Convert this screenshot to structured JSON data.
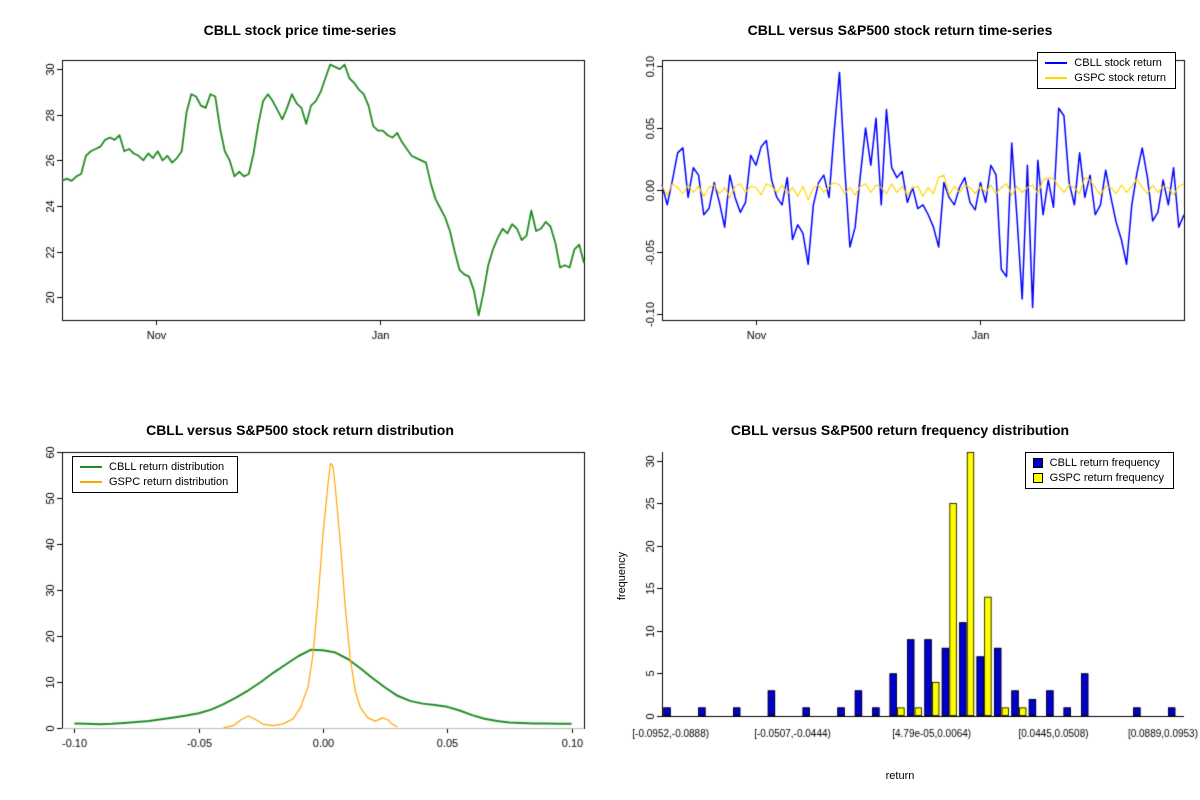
{
  "chart_data": [
    {
      "id": "price-timeseries",
      "type": "line",
      "title": "CBLL stock price time-series",
      "box": true,
      "ylim": [
        19.0,
        30.4
      ],
      "yticks": [
        {
          "v": 20,
          "label": "20"
        },
        {
          "v": 22,
          "label": "22"
        },
        {
          "v": 24,
          "label": "24"
        },
        {
          "v": 26,
          "label": "26"
        },
        {
          "v": 28,
          "label": "28"
        },
        {
          "v": 30,
          "label": "30"
        }
      ],
      "xticks": [
        {
          "pos": 0.18,
          "label": "Nov"
        },
        {
          "pos": 0.61,
          "label": "Jan"
        }
      ],
      "series": [
        {
          "name": "CBLL stock price",
          "color": "#228B22",
          "width": 1.8,
          "values": [
            25.1,
            25.2,
            25.1,
            25.3,
            25.4,
            26.2,
            26.4,
            26.5,
            26.6,
            26.9,
            27.0,
            26.9,
            27.1,
            26.4,
            26.5,
            26.3,
            26.2,
            26.0,
            26.3,
            26.1,
            26.4,
            26.0,
            26.2,
            25.9,
            26.1,
            26.4,
            28.1,
            28.9,
            28.8,
            28.4,
            28.3,
            28.9,
            28.8,
            27.4,
            26.4,
            26.0,
            25.3,
            25.5,
            25.3,
            25.4,
            26.3,
            27.6,
            28.6,
            28.9,
            28.6,
            28.2,
            27.8,
            28.3,
            28.9,
            28.5,
            28.3,
            27.6,
            28.4,
            28.6,
            29.0,
            29.6,
            30.2,
            30.1,
            30.0,
            30.2,
            29.6,
            29.4,
            29.1,
            28.9,
            28.4,
            27.5,
            27.3,
            27.3,
            27.1,
            27.0,
            27.2,
            26.8,
            26.5,
            26.2,
            26.1,
            26.0,
            25.9,
            25.0,
            24.3,
            23.9,
            23.5,
            22.9,
            22.0,
            21.2,
            21.0,
            20.9,
            20.3,
            19.2,
            20.2,
            21.4,
            22.1,
            22.6,
            23.0,
            22.8,
            23.2,
            23.0,
            22.5,
            22.7,
            23.8,
            22.9,
            23.0,
            23.3,
            23.1,
            22.4,
            21.3,
            21.4,
            21.3,
            22.1,
            22.3,
            21.5
          ]
        }
      ]
    },
    {
      "id": "return-timeseries",
      "type": "line",
      "title": "CBLL versus S&P500 stock return time-series",
      "box": true,
      "legend_position": "topright",
      "ylim": [
        -0.105,
        0.105
      ],
      "yticks": [
        {
          "v": -0.1,
          "label": "-0.10"
        },
        {
          "v": -0.05,
          "label": "-0.05"
        },
        {
          "v": 0,
          "label": "0.00"
        },
        {
          "v": 0.05,
          "label": "0.05"
        },
        {
          "v": 0.1,
          "label": "0.10"
        }
      ],
      "xticks": [
        {
          "pos": 0.18,
          "label": "Nov"
        },
        {
          "pos": 0.61,
          "label": "Jan"
        }
      ],
      "series": [
        {
          "name": "CBLL stock return",
          "color": "#0000FF",
          "width": 1.5,
          "values": [
            0.004,
            -0.012,
            0.008,
            0.03,
            0.034,
            -0.006,
            0.018,
            0.012,
            -0.02,
            -0.015,
            0.006,
            -0.01,
            -0.03,
            0.012,
            -0.006,
            -0.018,
            -0.01,
            0.028,
            0.02,
            0.035,
            0.04,
            0.008,
            -0.006,
            -0.012,
            0.01,
            -0.04,
            -0.028,
            -0.035,
            -0.06,
            -0.012,
            0.006,
            0.012,
            -0.006,
            0.048,
            0.095,
            0.018,
            -0.046,
            -0.03,
            0.012,
            0.05,
            0.02,
            0.058,
            -0.012,
            0.065,
            0.018,
            0.01,
            0.015,
            -0.01,
            0.002,
            -0.015,
            -0.012,
            -0.02,
            -0.03,
            -0.046,
            0.006,
            -0.006,
            -0.012,
            0.002,
            0.01,
            -0.01,
            -0.016,
            0.006,
            -0.01,
            0.02,
            0.012,
            -0.064,
            -0.07,
            0.038,
            -0.022,
            -0.088,
            0.02,
            -0.095,
            0.024,
            -0.02,
            0.008,
            -0.014,
            0.066,
            0.06,
            0.006,
            -0.012,
            0.03,
            -0.006,
            0.012,
            -0.02,
            -0.012,
            0.016,
            -0.006,
            -0.026,
            -0.04,
            -0.06,
            -0.012,
            0.014,
            0.034,
            0.01,
            -0.025,
            -0.018,
            0.008,
            -0.012,
            0.018,
            -0.03,
            -0.02
          ]
        },
        {
          "name": "GSPC stock return",
          "color": "#FFD700",
          "width": 1.2,
          "values": [
            0.003,
            -0.004,
            0.005,
            0.002,
            -0.003,
            0.004,
            -0.002,
            0.003,
            -0.005,
            0.002,
            0.004,
            -0.003,
            0.002,
            -0.006,
            0.003,
            0.005,
            -0.002,
            0.003,
            0.002,
            -0.004,
            0.005,
            0.003,
            -0.002,
            0.004,
            -0.003,
            0.002,
            -0.005,
            0.003,
            -0.008,
            0.002,
            0.004,
            -0.002,
            0.003,
            0.006,
            0.004,
            -0.003,
            0.002,
            -0.004,
            0.003,
            0.005,
            -0.002,
            0.004,
            0.002,
            -0.003,
            0.005,
            -0.002,
            0.003,
            -0.004,
            0.002,
            0.003,
            -0.005,
            0.002,
            -0.003,
            0.01,
            0.012,
            -0.004,
            0.003,
            -0.002,
            0.004,
            0.002,
            -0.003,
            0.003,
            -0.002,
            0.004,
            -0.003,
            0.002,
            0.005,
            -0.004,
            0.003,
            -0.002,
            0.002,
            0.004,
            -0.003,
            0.008,
            0.01,
            0.009,
            0.003,
            -0.002,
            0.004,
            0.002,
            -0.003,
            0.01,
            0.008,
            0.002,
            -0.004,
            0.003,
            0.002,
            -0.003,
            0.004,
            -0.002,
            0.003,
            0.009,
            0.002,
            -0.003,
            0.004,
            -0.002,
            0.003,
            0.002,
            -0.004,
            0.003,
            0.005
          ]
        }
      ]
    },
    {
      "id": "return-distribution",
      "type": "xyline",
      "title": "CBLL versus S&P500 stock return distribution",
      "box": true,
      "zeroline": true,
      "legend_position": "topleft",
      "xlim": [
        -0.105,
        0.105
      ],
      "ylim": [
        0,
        60
      ],
      "yticks": [
        {
          "v": 0,
          "label": "0"
        },
        {
          "v": 10,
          "label": "10"
        },
        {
          "v": 20,
          "label": "20"
        },
        {
          "v": 30,
          "label": "30"
        },
        {
          "v": 40,
          "label": "40"
        },
        {
          "v": 50,
          "label": "50"
        },
        {
          "v": 60,
          "label": "60"
        }
      ],
      "xticks": [
        {
          "v": -0.1,
          "label": "-0.10"
        },
        {
          "v": -0.05,
          "label": "-0.05"
        },
        {
          "v": 0,
          "label": "0.00"
        },
        {
          "v": 0.05,
          "label": "0.05"
        },
        {
          "v": 0.1,
          "label": "0.10"
        }
      ],
      "series": [
        {
          "name": "CBLL return distribution",
          "color": "#228B22",
          "width": 2,
          "points": [
            [
              -0.1,
              1.0
            ],
            [
              -0.095,
              0.9
            ],
            [
              -0.09,
              0.8
            ],
            [
              -0.085,
              0.9
            ],
            [
              -0.08,
              1.1
            ],
            [
              -0.075,
              1.3
            ],
            [
              -0.07,
              1.5
            ],
            [
              -0.065,
              1.9
            ],
            [
              -0.06,
              2.3
            ],
            [
              -0.055,
              2.7
            ],
            [
              -0.05,
              3.2
            ],
            [
              -0.045,
              4.0
            ],
            [
              -0.04,
              5.2
            ],
            [
              -0.035,
              6.6
            ],
            [
              -0.03,
              8.2
            ],
            [
              -0.025,
              10.0
            ],
            [
              -0.02,
              12.0
            ],
            [
              -0.015,
              13.8
            ],
            [
              -0.01,
              15.6
            ],
            [
              -0.005,
              17.0
            ],
            [
              0.0,
              16.9
            ],
            [
              0.005,
              16.4
            ],
            [
              0.01,
              15.0
            ],
            [
              0.015,
              13.0
            ],
            [
              0.02,
              10.8
            ],
            [
              0.025,
              8.8
            ],
            [
              0.03,
              7.0
            ],
            [
              0.035,
              5.9
            ],
            [
              0.04,
              5.3
            ],
            [
              0.045,
              5.0
            ],
            [
              0.05,
              4.6
            ],
            [
              0.055,
              3.8
            ],
            [
              0.06,
              2.8
            ],
            [
              0.065,
              2.0
            ],
            [
              0.07,
              1.5
            ],
            [
              0.075,
              1.2
            ],
            [
              0.08,
              1.1
            ],
            [
              0.085,
              1.0
            ],
            [
              0.09,
              1.0
            ],
            [
              0.095,
              0.9
            ],
            [
              0.1,
              0.9
            ]
          ]
        },
        {
          "name": "GSPC return distribution",
          "color": "#FFA500",
          "width": 1.2,
          "points": [
            [
              -0.04,
              0.1
            ],
            [
              -0.036,
              0.5
            ],
            [
              -0.033,
              1.8
            ],
            [
              -0.03,
              2.6
            ],
            [
              -0.027,
              1.8
            ],
            [
              -0.024,
              0.8
            ],
            [
              -0.02,
              0.5
            ],
            [
              -0.016,
              0.9
            ],
            [
              -0.012,
              2.0
            ],
            [
              -0.009,
              4.5
            ],
            [
              -0.006,
              9.0
            ],
            [
              -0.004,
              16.0
            ],
            [
              -0.002,
              28.0
            ],
            [
              0.0,
              42.0
            ],
            [
              0.002,
              53.0
            ],
            [
              0.003,
              57.5
            ],
            [
              0.004,
              57.0
            ],
            [
              0.005,
              52.0
            ],
            [
              0.007,
              40.0
            ],
            [
              0.009,
              26.0
            ],
            [
              0.011,
              15.0
            ],
            [
              0.013,
              8.0
            ],
            [
              0.015,
              4.5
            ],
            [
              0.018,
              2.2
            ],
            [
              0.021,
              1.5
            ],
            [
              0.024,
              2.2
            ],
            [
              0.026,
              1.8
            ],
            [
              0.028,
              0.8
            ],
            [
              0.03,
              0.2
            ]
          ]
        }
      ]
    },
    {
      "id": "return-frequency",
      "type": "bar",
      "title": "CBLL versus S&P500 return frequency distribution",
      "xlabel": "return",
      "ylabel": "frequency",
      "box": false,
      "legend_position": "topright",
      "ylim": [
        0,
        31
      ],
      "yticks": [
        {
          "v": 0,
          "label": "0"
        },
        {
          "v": 5,
          "label": "5"
        },
        {
          "v": 10,
          "label": "10"
        },
        {
          "v": 15,
          "label": "15"
        },
        {
          "v": 20,
          "label": "20"
        },
        {
          "v": 25,
          "label": "25"
        },
        {
          "v": 30,
          "label": "30"
        }
      ],
      "bin_labels": [
        {
          "bin": 0,
          "label": "[-0.0952,-0.0888)"
        },
        {
          "bin": 7,
          "label": "[-0.0507,-0.0444)"
        },
        {
          "bin": 15,
          "label": "[4.79e-05,0.0064)"
        },
        {
          "bin": 22,
          "label": "[0.0445,0.0508)"
        },
        {
          "bin": 29,
          "label": "[0.0889,0.0953)"
        }
      ],
      "series": [
        {
          "name": "CBLL return frequency",
          "color": "#0000CC",
          "values": [
            1,
            0,
            1,
            0,
            1,
            0,
            3,
            0,
            1,
            0,
            1,
            3,
            1,
            5,
            9,
            9,
            8,
            11,
            7,
            8,
            3,
            2,
            3,
            1,
            5,
            0,
            0,
            1,
            0,
            1
          ]
        },
        {
          "name": "GSPC return frequency",
          "color": "#FFFF00",
          "values": [
            0,
            0,
            0,
            0,
            0,
            0,
            0,
            0,
            0,
            0,
            0,
            0,
            0,
            1,
            1,
            4,
            25,
            31,
            14,
            1,
            1,
            0,
            0,
            0,
            0,
            0,
            0,
            0,
            0,
            0
          ]
        }
      ]
    }
  ]
}
